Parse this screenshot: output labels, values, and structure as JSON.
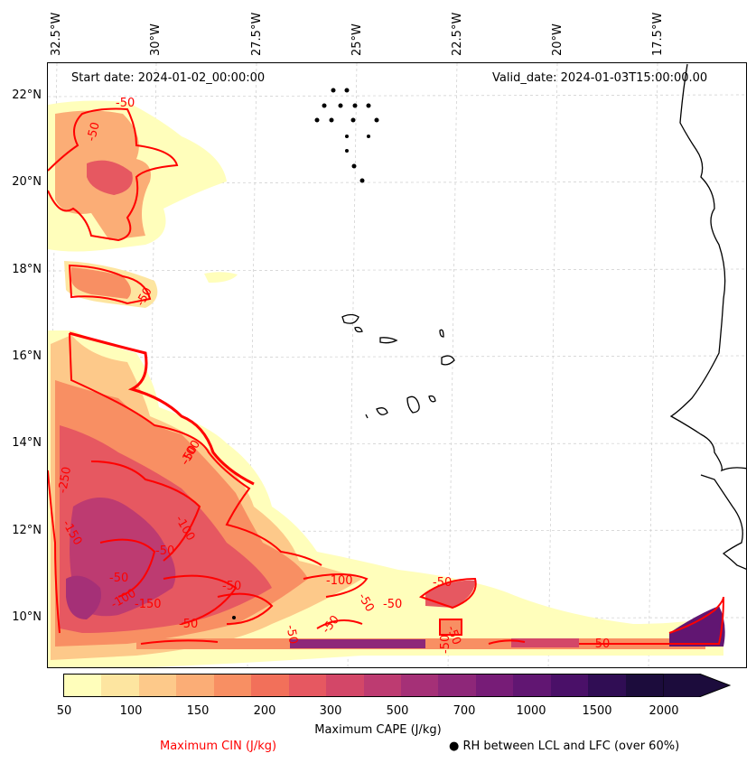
{
  "header": {
    "start_date": "Start date: 2024-01-02_00:00:00",
    "valid_date": "Valid_date: 2024-01-03T15:00:00.00"
  },
  "lon_labels": [
    "32.5°W",
    "30°W",
    "27.5°W",
    "25°W",
    "22.5°W",
    "20°W",
    "17.5°W"
  ],
  "lat_labels": [
    "22°N",
    "20°N",
    "18°N",
    "16°N",
    "14°N",
    "12°N",
    "10°N"
  ],
  "colorbar": {
    "ticks": [
      "50",
      "100",
      "150",
      "200",
      "300",
      "500",
      "700",
      "1000",
      "1500",
      "2000"
    ],
    "colors": [
      "#fffebb",
      "#fde5a0",
      "#fdc98a",
      "#fbad76",
      "#f88f63",
      "#f2705a",
      "#e65861",
      "#d34768",
      "#bd3b71",
      "#a53077",
      "#8e2779",
      "#771c77",
      "#611672",
      "#4a1068",
      "#300d54",
      "#1c0c3c"
    ],
    "label": "Maximum CAPE (J/kg)"
  },
  "legend": {
    "cin_label": "Maximum CIN (J/kg)",
    "rh_label": "RH between LCL and LFC (over 60%)"
  },
  "contour_labels": [
    "-50",
    "-50",
    "-50",
    "-50",
    "-250",
    "-150",
    "-100",
    "-50",
    "-50",
    "-100",
    "-150",
    "-50",
    "-50",
    "-100",
    "-50",
    "-50",
    "-50",
    "-50",
    "-50",
    "-50",
    "-50",
    "-50",
    "-100"
  ]
}
